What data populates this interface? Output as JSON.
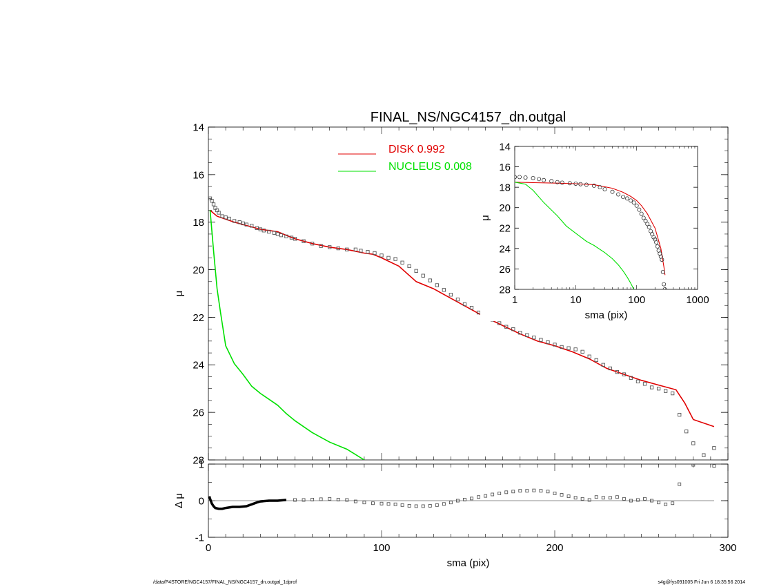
{
  "chart_data": [
    {
      "id": "main",
      "type": "line",
      "title": "FINAL_NS/NGC4157_dn.outgal",
      "xlabel": "",
      "ylabel": "μ",
      "xlim": [
        0,
        300
      ],
      "ylim": [
        14,
        28
      ],
      "y_inverted": true,
      "yticks": [
        14,
        16,
        18,
        20,
        22,
        24,
        26,
        28
      ],
      "legend": {
        "placement": "top-center",
        "items": [
          {
            "label": "DISK  0.992",
            "color": "#e00000"
          },
          {
            "label": "NUCLEUS  0.008",
            "color": "#00e000"
          }
        ]
      },
      "series": [
        {
          "name": "DISK  0.992",
          "kind": "line",
          "color": "#e00000",
          "x": [
            1,
            5,
            15,
            25,
            30,
            40,
            45,
            50,
            60,
            70,
            80,
            90,
            95,
            100,
            110,
            120,
            130,
            140,
            150,
            160,
            170,
            180,
            190,
            200,
            210,
            220,
            230,
            240,
            250,
            260,
            270,
            275,
            280,
            292
          ],
          "y": [
            17.5,
            17.75,
            18.0,
            18.2,
            18.3,
            18.4,
            18.55,
            18.7,
            18.9,
            19.05,
            19.15,
            19.3,
            19.35,
            19.5,
            19.85,
            20.5,
            20.8,
            21.2,
            21.6,
            22.0,
            22.35,
            22.7,
            23.0,
            23.2,
            23.45,
            23.75,
            24.15,
            24.4,
            24.65,
            24.85,
            25.05,
            25.6,
            26.3,
            26.6
          ]
        },
        {
          "name": "NUCLEUS  0.008",
          "kind": "line",
          "color": "#00e000",
          "x": [
            1,
            3,
            5,
            7,
            10,
            15,
            20,
            25,
            30,
            35,
            40,
            45,
            50,
            55,
            60,
            65,
            70,
            80,
            90
          ],
          "y": [
            17.5,
            19.2,
            20.8,
            21.8,
            23.2,
            23.95,
            24.4,
            24.9,
            25.2,
            25.45,
            25.7,
            26.05,
            26.35,
            26.6,
            26.85,
            27.05,
            27.25,
            27.55,
            28.0
          ]
        },
        {
          "name": "",
          "kind": "points",
          "marker": "square",
          "color": "#555555",
          "x": [
            1,
            2,
            3,
            4,
            5,
            6,
            8,
            10,
            12,
            15,
            18,
            20,
            22,
            25,
            28,
            30,
            32,
            35,
            38,
            40,
            42,
            45,
            48,
            50,
            55,
            60,
            65,
            70,
            75,
            80,
            85,
            88,
            92,
            96,
            100,
            104,
            108,
            112,
            116,
            120,
            124,
            128,
            132,
            136,
            140,
            144,
            148,
            152,
            156,
            160,
            164,
            168,
            172,
            176,
            180,
            184,
            188,
            192,
            196,
            200,
            204,
            208,
            212,
            216,
            220,
            224,
            228,
            232,
            236,
            240,
            244,
            248,
            252,
            256,
            260,
            264,
            268,
            272,
            276,
            280,
            286,
            292
          ],
          "y": [
            17.0,
            17.1,
            17.25,
            17.4,
            17.5,
            17.6,
            17.75,
            17.8,
            17.85,
            17.95,
            18.0,
            18.05,
            18.1,
            18.15,
            18.25,
            18.3,
            18.35,
            18.4,
            18.45,
            18.5,
            18.55,
            18.6,
            18.65,
            18.7,
            18.8,
            18.9,
            19.0,
            19.05,
            19.1,
            19.15,
            19.15,
            19.2,
            19.25,
            19.3,
            19.4,
            19.5,
            19.55,
            19.7,
            19.85,
            20.05,
            20.25,
            20.45,
            20.65,
            20.85,
            21.05,
            21.25,
            21.45,
            21.6,
            21.8,
            21.95,
            22.1,
            22.25,
            22.4,
            22.5,
            22.65,
            22.75,
            22.85,
            22.95,
            23.05,
            23.15,
            23.25,
            23.3,
            23.35,
            23.45,
            23.65,
            23.8,
            24.0,
            24.15,
            24.3,
            24.4,
            24.55,
            24.7,
            24.8,
            24.95,
            25.0,
            25.1,
            25.2,
            26.1,
            26.8,
            27.3,
            27.8,
            27.5
          ]
        }
      ]
    },
    {
      "id": "residual",
      "type": "scatter",
      "xlabel": "sma (pix)",
      "ylabel": "Δ μ",
      "xlim": [
        0,
        300
      ],
      "ylim": [
        -1.0,
        1.0
      ],
      "xticks": [
        0,
        100,
        200,
        300
      ],
      "yticks": [
        -1,
        0,
        1
      ],
      "reference_line": 0,
      "series": [
        {
          "name": "",
          "kind": "thick-line",
          "color": "#000000",
          "x": [
            0.5,
            1,
            2,
            3,
            4,
            6,
            8,
            10,
            14,
            18,
            22,
            25,
            28,
            30,
            35,
            40,
            45
          ],
          "y": [
            0.12,
            0.05,
            -0.08,
            -0.15,
            -0.2,
            -0.22,
            -0.22,
            -0.2,
            -0.17,
            -0.17,
            -0.15,
            -0.1,
            -0.05,
            -0.02,
            0.0,
            0.0,
            0.02
          ]
        },
        {
          "name": "",
          "kind": "points",
          "marker": "square",
          "color": "#555555",
          "x": [
            50,
            55,
            60,
            65,
            70,
            75,
            80,
            85,
            90,
            95,
            100,
            104,
            108,
            112,
            116,
            120,
            124,
            128,
            132,
            136,
            140,
            144,
            148,
            152,
            156,
            160,
            164,
            168,
            172,
            176,
            180,
            184,
            188,
            192,
            196,
            200,
            204,
            208,
            212,
            216,
            220,
            224,
            228,
            232,
            236,
            240,
            244,
            248,
            252,
            256,
            260,
            264,
            268,
            272,
            280,
            292
          ],
          "y": [
            0.02,
            0.02,
            0.03,
            0.04,
            0.05,
            0.03,
            0.02,
            -0.02,
            -0.05,
            -0.07,
            -0.08,
            -0.09,
            -0.1,
            -0.12,
            -0.14,
            -0.15,
            -0.15,
            -0.14,
            -0.12,
            -0.09,
            -0.05,
            0.0,
            0.03,
            0.06,
            0.1,
            0.13,
            0.17,
            0.2,
            0.23,
            0.25,
            0.27,
            0.27,
            0.28,
            0.27,
            0.25,
            0.2,
            0.16,
            0.12,
            0.08,
            0.05,
            0.02,
            0.1,
            0.08,
            0.08,
            0.1,
            0.05,
            0.0,
            0.02,
            0.05,
            0.0,
            -0.05,
            -0.1,
            -0.07,
            0.45,
            0.98,
            0.95
          ]
        }
      ]
    },
    {
      "id": "inset",
      "type": "line",
      "xlabel": "sma (pix)",
      "ylabel": "μ",
      "x_scale": "log",
      "xlim": [
        1,
        1000
      ],
      "ylim": [
        14,
        28
      ],
      "y_inverted": true,
      "xticks": [
        1,
        10,
        100,
        1000
      ],
      "yticks": [
        14,
        16,
        18,
        20,
        22,
        24,
        26,
        28
      ],
      "series": [
        {
          "name": "DISK  0.992",
          "kind": "line",
          "color": "#e00000",
          "x": [
            1,
            2,
            5,
            10,
            20,
            40,
            60,
            80,
            100,
            120,
            150,
            200,
            250,
            280,
            292
          ],
          "y": [
            17.5,
            17.55,
            17.6,
            17.65,
            17.75,
            18.1,
            18.5,
            18.9,
            19.3,
            19.8,
            20.6,
            22.0,
            24.0,
            25.8,
            26.6
          ]
        },
        {
          "name": "NUCLEUS  0.008",
          "kind": "line",
          "color": "#00e000",
          "x": [
            1,
            1.5,
            2,
            3,
            5,
            7,
            10,
            15,
            20,
            30,
            40,
            50,
            60,
            70,
            80,
            90
          ],
          "y": [
            17.5,
            17.7,
            18.3,
            19.5,
            20.8,
            21.8,
            22.5,
            23.3,
            23.7,
            24.4,
            25.0,
            25.6,
            26.2,
            26.8,
            27.4,
            28.0
          ]
        },
        {
          "name": "",
          "kind": "points",
          "marker": "circle",
          "color": "#333333",
          "x": [
            1,
            1.2,
            1.5,
            2,
            2.5,
            3,
            4,
            5,
            6,
            8,
            10,
            12,
            15,
            20,
            25,
            30,
            40,
            50,
            60,
            70,
            80,
            90,
            100,
            110,
            120,
            130,
            140,
            150,
            160,
            170,
            180,
            190,
            200,
            210,
            220,
            230,
            240,
            250,
            260,
            270,
            280,
            290
          ],
          "y": [
            17.0,
            17.0,
            17.05,
            17.1,
            17.2,
            17.3,
            17.4,
            17.5,
            17.55,
            17.6,
            17.65,
            17.7,
            17.75,
            17.85,
            18.0,
            18.2,
            18.45,
            18.7,
            18.95,
            19.1,
            19.3,
            19.5,
            19.8,
            20.2,
            20.6,
            21.0,
            21.3,
            21.6,
            21.9,
            22.3,
            22.6,
            22.9,
            23.1,
            23.4,
            23.8,
            24.2,
            24.5,
            24.8,
            25.1,
            26.3,
            27.5,
            28.0
          ]
        }
      ]
    }
  ],
  "footer": {
    "left": "/data/P4STORE/NGC4157/FINAL_NS/NGC4157_dn.outgal_1dprof",
    "right": "s4g@fys091005  Fri Jun  6 18:35:56 2014"
  }
}
